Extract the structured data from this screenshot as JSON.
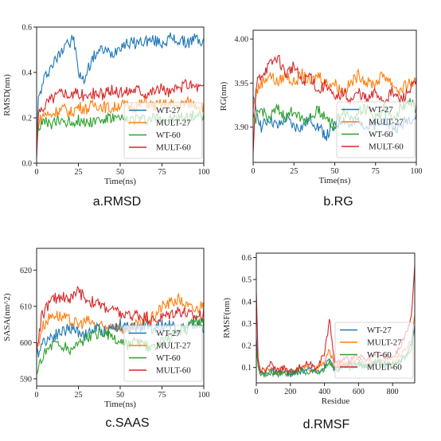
{
  "colors": {
    "WT-27": "#1f77b4",
    "MULT-27": "#ff7f0e",
    "WT-60": "#2ca02c",
    "MULT-60": "#d62728"
  },
  "chart_data": [
    {
      "id": "rmsd",
      "type": "line",
      "caption": "a.RMSD",
      "xlabel": "Time(ns)",
      "ylabel": "RMSD(nm)",
      "xlim": [
        0,
        100
      ],
      "ylim": [
        0,
        0.6
      ],
      "xticks": [
        0,
        25,
        50,
        75,
        100
      ],
      "yticks": [
        0.0,
        0.2,
        0.4,
        0.6
      ],
      "ytick_labels": [
        "0.0",
        "0.2",
        "0.4",
        "0.6"
      ],
      "legend": "lower-right",
      "series": [
        {
          "name": "WT-27",
          "x": [
            0,
            1,
            3,
            5,
            8,
            12,
            15,
            18,
            20,
            22,
            25,
            28,
            32,
            36,
            40,
            45,
            50,
            55,
            60,
            65,
            70,
            75,
            80,
            85,
            90,
            95,
            100
          ],
          "values": [
            0.05,
            0.28,
            0.33,
            0.38,
            0.42,
            0.46,
            0.5,
            0.55,
            0.52,
            0.56,
            0.4,
            0.36,
            0.44,
            0.49,
            0.5,
            0.48,
            0.52,
            0.53,
            0.53,
            0.54,
            0.54,
            0.53,
            0.55,
            0.54,
            0.53,
            0.55,
            0.53
          ]
        },
        {
          "name": "MULT-27",
          "x": [
            0,
            1,
            3,
            5,
            8,
            12,
            16,
            20,
            25,
            30,
            35,
            40,
            45,
            50,
            55,
            60,
            65,
            70,
            75,
            80,
            85,
            90,
            95,
            100
          ],
          "values": [
            0.08,
            0.18,
            0.2,
            0.22,
            0.21,
            0.23,
            0.24,
            0.22,
            0.25,
            0.24,
            0.26,
            0.25,
            0.24,
            0.26,
            0.25,
            0.25,
            0.27,
            0.25,
            0.26,
            0.26,
            0.25,
            0.27,
            0.26,
            0.25
          ]
        },
        {
          "name": "WT-60",
          "x": [
            0,
            1,
            3,
            5,
            8,
            12,
            16,
            20,
            25,
            30,
            35,
            40,
            45,
            50,
            55,
            60,
            65,
            70,
            75,
            80,
            85,
            90,
            95,
            100
          ],
          "values": [
            0.08,
            0.16,
            0.17,
            0.18,
            0.17,
            0.18,
            0.19,
            0.18,
            0.19,
            0.18,
            0.19,
            0.19,
            0.2,
            0.19,
            0.19,
            0.2,
            0.19,
            0.2,
            0.2,
            0.19,
            0.2,
            0.2,
            0.21,
            0.2
          ]
        },
        {
          "name": "MULT-60",
          "x": [
            0,
            1,
            3,
            5,
            8,
            12,
            16,
            20,
            25,
            30,
            35,
            40,
            45,
            50,
            55,
            60,
            65,
            70,
            75,
            80,
            85,
            90,
            95,
            100
          ],
          "values": [
            0.02,
            0.2,
            0.24,
            0.26,
            0.28,
            0.3,
            0.32,
            0.3,
            0.31,
            0.29,
            0.31,
            0.3,
            0.32,
            0.31,
            0.32,
            0.33,
            0.31,
            0.32,
            0.33,
            0.31,
            0.33,
            0.35,
            0.34,
            0.33
          ]
        }
      ]
    },
    {
      "id": "rg",
      "type": "line",
      "caption": "b.RG",
      "xlabel": "Time(ns)",
      "ylabel": "RG(nm)",
      "xlim": [
        0,
        100
      ],
      "ylim": [
        3.86,
        4.01
      ],
      "xticks": [
        0,
        25,
        50,
        75,
        100
      ],
      "yticks": [
        3.9,
        3.95,
        4.0
      ],
      "ytick_labels": [
        "3.90",
        "3.95",
        "4.00"
      ],
      "legend": "lower-right",
      "series": [
        {
          "name": "WT-27",
          "x": [
            0,
            2,
            5,
            10,
            15,
            20,
            25,
            30,
            35,
            40,
            45,
            50,
            55,
            60,
            65,
            70,
            75,
            80,
            85,
            90,
            95,
            100
          ],
          "values": [
            3.93,
            3.92,
            3.9,
            3.91,
            3.9,
            3.91,
            3.9,
            3.9,
            3.91,
            3.9,
            3.89,
            3.9,
            3.91,
            3.9,
            3.91,
            3.9,
            3.9,
            3.91,
            3.9,
            3.9,
            3.91,
            3.91
          ]
        },
        {
          "name": "MULT-27",
          "x": [
            0,
            2,
            5,
            10,
            15,
            20,
            25,
            30,
            35,
            40,
            45,
            50,
            55,
            60,
            65,
            70,
            75,
            80,
            85,
            90,
            95,
            100
          ],
          "values": [
            3.92,
            3.94,
            3.95,
            3.96,
            3.95,
            3.96,
            3.95,
            3.96,
            3.95,
            3.96,
            3.95,
            3.95,
            3.94,
            3.95,
            3.96,
            3.95,
            3.95,
            3.96,
            3.95,
            3.94,
            3.95,
            3.95
          ]
        },
        {
          "name": "WT-60",
          "x": [
            0,
            2,
            5,
            10,
            15,
            20,
            25,
            30,
            35,
            40,
            45,
            50,
            55,
            60,
            65,
            70,
            75,
            80,
            85,
            90,
            95,
            100
          ],
          "values": [
            3.91,
            3.91,
            3.92,
            3.91,
            3.92,
            3.91,
            3.92,
            3.91,
            3.91,
            3.92,
            3.91,
            3.9,
            3.92,
            3.91,
            3.92,
            3.92,
            3.91,
            3.92,
            3.91,
            3.92,
            3.93,
            3.92
          ]
        },
        {
          "name": "MULT-60",
          "x": [
            0,
            2,
            5,
            10,
            15,
            20,
            25,
            30,
            35,
            40,
            45,
            50,
            55,
            60,
            65,
            70,
            75,
            80,
            85,
            90,
            95,
            100
          ],
          "values": [
            3.87,
            3.95,
            3.96,
            3.97,
            3.98,
            3.96,
            3.97,
            3.95,
            3.96,
            3.94,
            3.95,
            3.93,
            3.94,
            3.93,
            3.94,
            3.93,
            3.94,
            3.93,
            3.94,
            3.93,
            3.94,
            3.95
          ]
        }
      ]
    },
    {
      "id": "saas",
      "type": "line",
      "caption": "c.SAAS",
      "xlabel": "Time(ns)",
      "ylabel": "SASA(nm^2)",
      "xlim": [
        0,
        100
      ],
      "ylim": [
        588,
        626
      ],
      "xticks": [
        0,
        25,
        50,
        75,
        100
      ],
      "yticks": [
        590,
        600,
        610,
        620
      ],
      "ytick_labels": [
        "590",
        "600",
        "610",
        "620"
      ],
      "legend": "lower-right",
      "series": [
        {
          "name": "WT-27",
          "x": [
            0,
            3,
            6,
            10,
            15,
            20,
            25,
            30,
            35,
            40,
            45,
            50,
            55,
            60,
            65,
            70,
            75,
            80,
            85,
            90,
            95,
            100
          ],
          "values": [
            596,
            600,
            601,
            602,
            603,
            604,
            603,
            602,
            604,
            603,
            604,
            605,
            604,
            604,
            605,
            604,
            605,
            605,
            604,
            604,
            605,
            604
          ]
        },
        {
          "name": "MULT-27",
          "x": [
            0,
            3,
            6,
            10,
            15,
            20,
            25,
            30,
            35,
            40,
            45,
            50,
            55,
            60,
            65,
            70,
            75,
            80,
            85,
            90,
            95,
            100
          ],
          "values": [
            597,
            604,
            606,
            608,
            607,
            606,
            605,
            606,
            605,
            604,
            605,
            604,
            603,
            605,
            606,
            607,
            610,
            611,
            612,
            610,
            609,
            611
          ]
        },
        {
          "name": "WT-60",
          "x": [
            0,
            3,
            6,
            10,
            15,
            20,
            25,
            30,
            35,
            40,
            45,
            50,
            55,
            60,
            65,
            70,
            75,
            80,
            85,
            90,
            95,
            100
          ],
          "values": [
            590,
            596,
            598,
            600,
            599,
            598,
            600,
            601,
            602,
            603,
            601,
            600,
            599,
            600,
            599,
            598,
            600,
            602,
            603,
            604,
            606,
            605
          ]
        },
        {
          "name": "MULT-60",
          "x": [
            0,
            3,
            6,
            10,
            15,
            20,
            25,
            30,
            35,
            40,
            45,
            50,
            55,
            60,
            65,
            70,
            75,
            80,
            85,
            90,
            95,
            100
          ],
          "values": [
            598,
            607,
            610,
            612,
            613,
            612,
            614,
            612,
            611,
            610,
            609,
            608,
            607,
            608,
            607,
            606,
            607,
            608,
            609,
            608,
            607,
            608
          ]
        }
      ]
    },
    {
      "id": "rmsf",
      "type": "line",
      "caption": "d.RMSF",
      "xlabel": "Residue",
      "ylabel": "RMSF(nm)",
      "xlim": [
        0,
        930
      ],
      "ylim": [
        0.03,
        0.62
      ],
      "xticks": [
        0,
        200,
        400,
        600,
        800
      ],
      "yticks": [
        0.1,
        0.2,
        0.3,
        0.4,
        0.5,
        0.6
      ],
      "ytick_labels": [
        "0.1",
        "0.2",
        "0.3",
        "0.4",
        "0.5",
        "0.6"
      ],
      "legend": "lower-right",
      "series": [
        {
          "name": "WT-27",
          "x": [
            0,
            10,
            20,
            50,
            80,
            120,
            160,
            200,
            250,
            300,
            350,
            400,
            430,
            460,
            500,
            550,
            600,
            650,
            700,
            750,
            800,
            850,
            880,
            910,
            930
          ],
          "values": [
            0.24,
            0.12,
            0.08,
            0.07,
            0.09,
            0.07,
            0.08,
            0.07,
            0.08,
            0.09,
            0.08,
            0.1,
            0.14,
            0.09,
            0.1,
            0.11,
            0.12,
            0.1,
            0.13,
            0.12,
            0.11,
            0.14,
            0.16,
            0.2,
            0.3
          ]
        },
        {
          "name": "MULT-27",
          "x": [
            0,
            10,
            20,
            50,
            80,
            120,
            160,
            200,
            250,
            300,
            350,
            400,
            430,
            460,
            500,
            550,
            600,
            650,
            700,
            750,
            800,
            850,
            880,
            910,
            930
          ],
          "values": [
            0.2,
            0.11,
            0.08,
            0.08,
            0.1,
            0.08,
            0.09,
            0.08,
            0.09,
            0.1,
            0.09,
            0.12,
            0.18,
            0.1,
            0.11,
            0.12,
            0.13,
            0.11,
            0.14,
            0.13,
            0.12,
            0.16,
            0.18,
            0.22,
            0.35
          ]
        },
        {
          "name": "WT-60",
          "x": [
            0,
            10,
            20,
            50,
            80,
            120,
            160,
            200,
            250,
            300,
            350,
            400,
            430,
            460,
            500,
            550,
            600,
            650,
            700,
            750,
            800,
            850,
            880,
            910,
            930
          ],
          "values": [
            0.18,
            0.1,
            0.07,
            0.07,
            0.08,
            0.07,
            0.08,
            0.07,
            0.08,
            0.08,
            0.08,
            0.09,
            0.13,
            0.09,
            0.1,
            0.1,
            0.11,
            0.1,
            0.12,
            0.11,
            0.11,
            0.13,
            0.15,
            0.19,
            0.27
          ]
        },
        {
          "name": "MULT-60",
          "x": [
            0,
            10,
            20,
            50,
            80,
            120,
            160,
            200,
            250,
            300,
            350,
            400,
            430,
            460,
            500,
            550,
            600,
            650,
            700,
            750,
            800,
            850,
            880,
            910,
            930
          ],
          "values": [
            0.45,
            0.15,
            0.09,
            0.08,
            0.12,
            0.09,
            0.1,
            0.08,
            0.1,
            0.12,
            0.1,
            0.16,
            0.32,
            0.12,
            0.13,
            0.14,
            0.15,
            0.13,
            0.16,
            0.15,
            0.14,
            0.2,
            0.26,
            0.32,
            0.58
          ]
        }
      ]
    }
  ]
}
